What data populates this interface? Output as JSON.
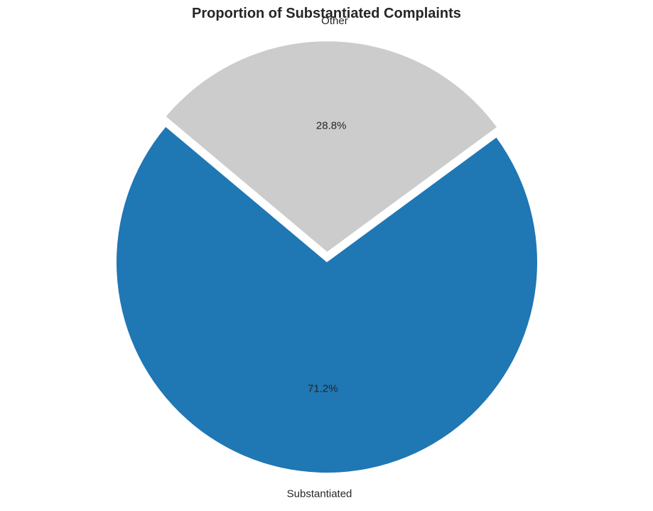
{
  "chart_data": {
    "type": "pie",
    "title": "Proportion of Substantiated Complaints",
    "slices": [
      {
        "label": "Substantiated",
        "value": 71.2,
        "pct_label": "71.2%",
        "color": "#1f77b4"
      },
      {
        "label": "Other",
        "value": 28.8,
        "pct_label": "28.8%",
        "color": "#cccccc"
      }
    ]
  }
}
